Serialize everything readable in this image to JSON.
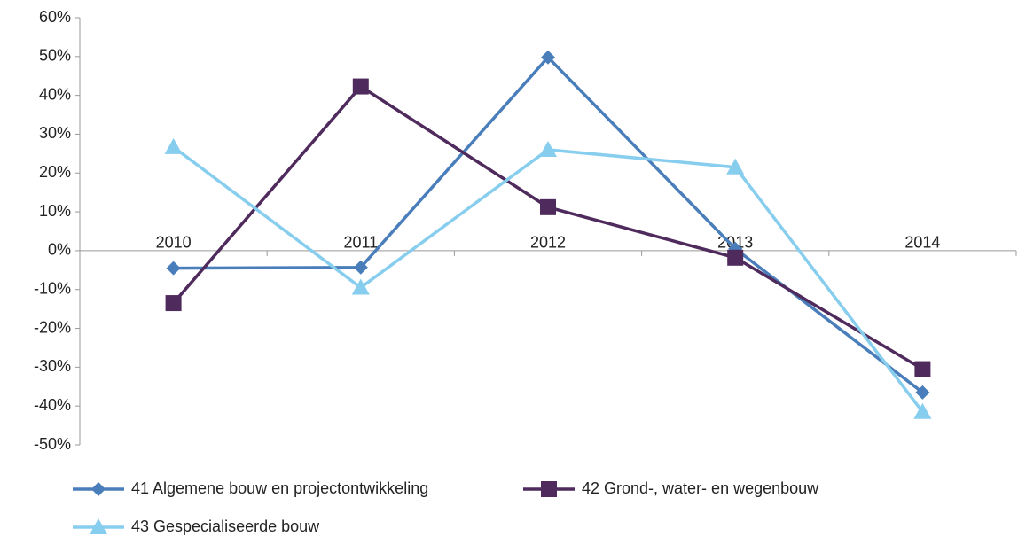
{
  "chart_data": {
    "type": "line",
    "categories": [
      "2010",
      "2011",
      "2012",
      "2013",
      "2014"
    ],
    "series": [
      {
        "name": "41 Algemene bouw en projectontwikkeling",
        "color": "#4a7ebb",
        "marker": "diamond",
        "values": [
          -4.5,
          -4.3,
          49.8,
          0.5,
          -36.5
        ]
      },
      {
        "name": "42 Grond-, water- en wegenbouw",
        "color": "#4f2a5c",
        "marker": "square",
        "values": [
          -13.5,
          42.3,
          11.2,
          -1.8,
          -30.5
        ]
      },
      {
        "name": "43 Gespecialiseerde bouw",
        "color": "#87cdee",
        "marker": "triangle",
        "values": [
          26.7,
          -9.5,
          26.0,
          21.5,
          -41.5
        ]
      }
    ],
    "ylim": [
      -50,
      60
    ],
    "yticks": [
      {
        "value": -50,
        "label": "-50%"
      },
      {
        "value": -40,
        "label": "-40%"
      },
      {
        "value": -30,
        "label": "-30%"
      },
      {
        "value": -20,
        "label": "-20%"
      },
      {
        "value": -10,
        "label": "-10%"
      },
      {
        "value": 0,
        "label": "0%"
      },
      {
        "value": 10,
        "label": "10%"
      },
      {
        "value": 20,
        "label": "20%"
      },
      {
        "value": 30,
        "label": "30%"
      },
      {
        "value": 40,
        "label": "40%"
      },
      {
        "value": 50,
        "label": "50%"
      },
      {
        "value": 60,
        "label": "60%"
      }
    ],
    "grid": false,
    "legend": "bottom"
  }
}
